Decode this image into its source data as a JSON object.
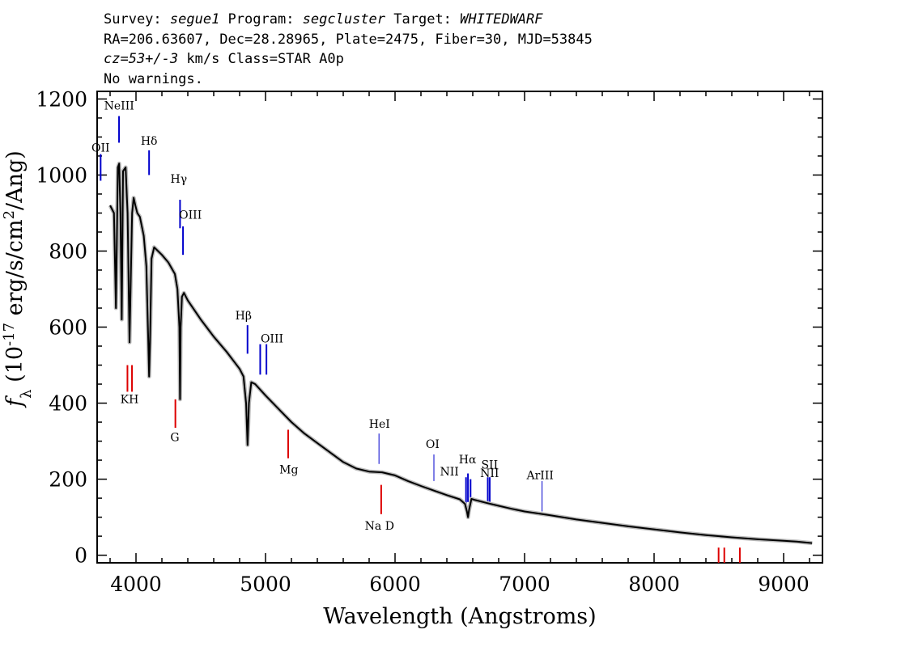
{
  "header": {
    "line1": [
      {
        "text": "Survey: ",
        "italic": false
      },
      {
        "text": "segue1",
        "italic": true
      },
      {
        "text": " Program: ",
        "italic": false
      },
      {
        "text": "segcluster",
        "italic": true
      },
      {
        "text": " Target: ",
        "italic": false
      },
      {
        "text": "WHITEDWARF",
        "italic": true
      }
    ],
    "line2": "RA=206.63607, Dec=28.28965, Plate=2475, Fiber=30, MJD=53845",
    "line3": [
      {
        "text": "cz=53+/-3",
        "italic": true
      },
      {
        "text": " km/s Class=STAR A0p",
        "italic": false
      }
    ],
    "line4": "No warnings."
  },
  "chart_data": {
    "type": "line",
    "xlabel": "Wavelength (Angstroms)",
    "ylabel": "f_λ (10^-17 erg/s/cm^2/Ang)",
    "xlim": [
      3700,
      9300
    ],
    "ylim": [
      -20,
      1220
    ],
    "x_ticks": [
      4000,
      5000,
      6000,
      7000,
      8000,
      9000
    ],
    "y_ticks": [
      0,
      200,
      400,
      600,
      800,
      1000,
      1200
    ],
    "grid": false,
    "series": [
      {
        "color": "#000000",
        "x": [
          3800,
          3830,
          3845,
          3860,
          3870,
          3880,
          3890,
          3900,
          3920,
          3935,
          3950,
          3970,
          3982,
          3995,
          4010,
          4030,
          4060,
          4080,
          4095,
          4101,
          4108,
          4120,
          4140,
          4170,
          4200,
          4250,
          4300,
          4320,
          4335,
          4340,
          4345,
          4355,
          4370,
          4400,
          4450,
          4500,
          4600,
          4700,
          4800,
          4830,
          4850,
          4861,
          4872,
          4890,
          4920,
          5000,
          5100,
          5200,
          5300,
          5400,
          5500,
          5600,
          5700,
          5800,
          5900,
          6000,
          6100,
          6200,
          6300,
          6400,
          6500,
          6540,
          6555,
          6563,
          6572,
          6590,
          6620,
          6700,
          6800,
          6900,
          7000,
          7200,
          7400,
          7600,
          7800,
          8000,
          8200,
          8400,
          8600,
          8800,
          9000,
          9100,
          9220
        ],
        "y": [
          920,
          900,
          650,
          1020,
          1030,
          900,
          620,
          1010,
          1020,
          900,
          560,
          900,
          940,
          920,
          900,
          890,
          840,
          760,
          560,
          470,
          560,
          780,
          810,
          800,
          790,
          770,
          740,
          700,
          600,
          410,
          600,
          680,
          690,
          670,
          645,
          620,
          575,
          535,
          490,
          470,
          400,
          290,
          400,
          455,
          450,
          420,
          385,
          350,
          320,
          295,
          270,
          245,
          228,
          220,
          218,
          210,
          195,
          182,
          170,
          158,
          147,
          135,
          115,
          100,
          120,
          148,
          145,
          138,
          130,
          122,
          115,
          105,
          94,
          85,
          76,
          68,
          60,
          53,
          47,
          42,
          38,
          36,
          32
        ]
      }
    ],
    "lines": [
      {
        "name": "NeIII",
        "color": "blue",
        "x": 3869,
        "y1": 1085,
        "y2": 1155,
        "lx": 3870,
        "ly": 1172
      },
      {
        "name": "OII",
        "color": "blue",
        "x": 3727,
        "y1": 985,
        "y2": 1055,
        "lx": 3727,
        "ly": 1062
      },
      {
        "name": "Hδ",
        "color": "blue",
        "x": 4101,
        "y1": 1000,
        "y2": 1065,
        "lx": 4101,
        "ly": 1080
      },
      {
        "name": "Hγ",
        "color": "blue",
        "x": 4340,
        "y1": 860,
        "y2": 935,
        "lx": 4330,
        "ly": 980
      },
      {
        "name": "OIII",
        "color": "blue",
        "x": 4363,
        "y1": 790,
        "y2": 865,
        "lx": 4420,
        "ly": 885
      },
      {
        "name": "Hβ",
        "color": "blue",
        "x": 4861,
        "y1": 530,
        "y2": 605,
        "lx": 4830,
        "ly": 620
      },
      {
        "name": "OIII",
        "color": "blue",
        "x": 4959,
        "y1": 475,
        "y2": 555,
        "lx": 5050,
        "ly": 560
      },
      {
        "name": "OIII",
        "color": "blue",
        "x": 5007,
        "y1": 475,
        "y2": 555,
        "lx": null,
        "ly": null
      },
      {
        "name": "HeI",
        "color": "blue",
        "x": 5876,
        "y1": 240,
        "y2": 320,
        "lx": 5880,
        "ly": 335
      },
      {
        "name": "OI",
        "color": "blue",
        "x": 6300,
        "y1": 195,
        "y2": 265,
        "lx": 6290,
        "ly": 282
      },
      {
        "name": "NII",
        "color": "blue",
        "x": 6548,
        "y1": 130,
        "y2": 205,
        "lx": 6420,
        "ly": 210
      },
      {
        "name": "Hα",
        "color": "blue",
        "x": 6563,
        "y1": 140,
        "y2": 215,
        "lx": 6560,
        "ly": 242
      },
      {
        "name": "NII",
        "color": "blue",
        "x": 6583,
        "y1": 140,
        "y2": 200,
        "lx": 6730,
        "ly": 205
      },
      {
        "name": "SII",
        "color": "blue",
        "x": 6716,
        "y1": 140,
        "y2": 205,
        "lx": 6730,
        "ly": 228
      },
      {
        "name": "SII",
        "color": "blue",
        "x": 6731,
        "y1": 140,
        "y2": 205,
        "lx": null,
        "ly": null
      },
      {
        "name": "ArIII",
        "color": "blue",
        "x": 7135,
        "y1": 115,
        "y2": 195,
        "lx": 7120,
        "ly": 200
      },
      {
        "name": "K",
        "color": "red",
        "x": 3934,
        "y1": 430,
        "y2": 500,
        "lx": null,
        "ly": null
      },
      {
        "name": "H",
        "color": "red",
        "x": 3969,
        "y1": 430,
        "y2": 500,
        "lx": null,
        "ly": null
      },
      {
        "name": "KH",
        "color": "red",
        "x": 3950,
        "y1": null,
        "y2": null,
        "lx": 3950,
        "ly": 400
      },
      {
        "name": "G",
        "color": "red",
        "x": 4304,
        "y1": 335,
        "y2": 410,
        "lx": 4300,
        "ly": 300
      },
      {
        "name": "Mg",
        "color": "red",
        "x": 5175,
        "y1": 255,
        "y2": 330,
        "lx": 5180,
        "ly": 215
      },
      {
        "name": "Na D",
        "color": "red",
        "x": 5893,
        "y1": 108,
        "y2": 185,
        "lx": 5880,
        "ly": 67
      },
      {
        "name": "",
        "color": "red",
        "x": 8498,
        "y1": -20,
        "y2": 20,
        "lx": null,
        "ly": null
      },
      {
        "name": "",
        "color": "red",
        "x": 8542,
        "y1": -20,
        "y2": 20,
        "lx": null,
        "ly": null
      },
      {
        "name": "",
        "color": "red",
        "x": 8662,
        "y1": -20,
        "y2": 20,
        "lx": null,
        "ly": null
      }
    ]
  }
}
